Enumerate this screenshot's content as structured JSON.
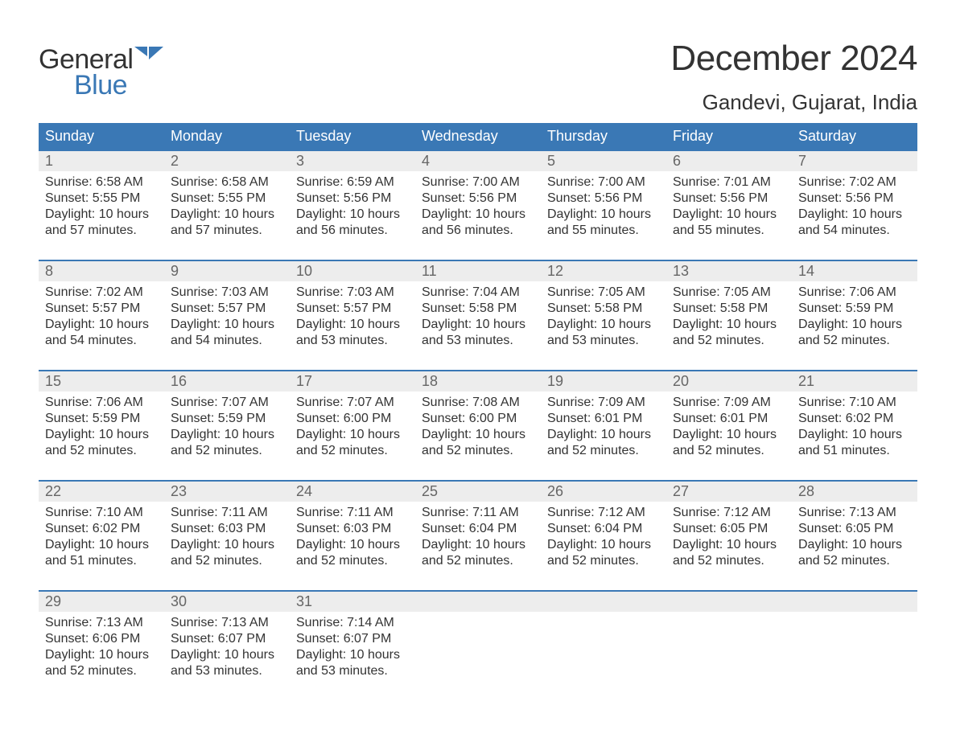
{
  "brand": {
    "line1": "General",
    "line2": "Blue",
    "accent_color": "#3a78b5"
  },
  "title": "December 2024",
  "location": "Gandevi, Gujarat, India",
  "colors": {
    "header_bg": "#3a78b5",
    "header_text": "#ffffff",
    "daynum_bg": "#ededed",
    "daynum_text": "#666666",
    "body_text": "#333333",
    "week_border": "#3a78b5",
    "page_bg": "#ffffff"
  },
  "weekdays": [
    "Sunday",
    "Monday",
    "Tuesday",
    "Wednesday",
    "Thursday",
    "Friday",
    "Saturday"
  ],
  "weeks": [
    [
      {
        "n": "1",
        "sr": "Sunrise: 6:58 AM",
        "ss": "Sunset: 5:55 PM",
        "dl": "Daylight: 10 hours and 57 minutes."
      },
      {
        "n": "2",
        "sr": "Sunrise: 6:58 AM",
        "ss": "Sunset: 5:55 PM",
        "dl": "Daylight: 10 hours and 57 minutes."
      },
      {
        "n": "3",
        "sr": "Sunrise: 6:59 AM",
        "ss": "Sunset: 5:56 PM",
        "dl": "Daylight: 10 hours and 56 minutes."
      },
      {
        "n": "4",
        "sr": "Sunrise: 7:00 AM",
        "ss": "Sunset: 5:56 PM",
        "dl": "Daylight: 10 hours and 56 minutes."
      },
      {
        "n": "5",
        "sr": "Sunrise: 7:00 AM",
        "ss": "Sunset: 5:56 PM",
        "dl": "Daylight: 10 hours and 55 minutes."
      },
      {
        "n": "6",
        "sr": "Sunrise: 7:01 AM",
        "ss": "Sunset: 5:56 PM",
        "dl": "Daylight: 10 hours and 55 minutes."
      },
      {
        "n": "7",
        "sr": "Sunrise: 7:02 AM",
        "ss": "Sunset: 5:56 PM",
        "dl": "Daylight: 10 hours and 54 minutes."
      }
    ],
    [
      {
        "n": "8",
        "sr": "Sunrise: 7:02 AM",
        "ss": "Sunset: 5:57 PM",
        "dl": "Daylight: 10 hours and 54 minutes."
      },
      {
        "n": "9",
        "sr": "Sunrise: 7:03 AM",
        "ss": "Sunset: 5:57 PM",
        "dl": "Daylight: 10 hours and 54 minutes."
      },
      {
        "n": "10",
        "sr": "Sunrise: 7:03 AM",
        "ss": "Sunset: 5:57 PM",
        "dl": "Daylight: 10 hours and 53 minutes."
      },
      {
        "n": "11",
        "sr": "Sunrise: 7:04 AM",
        "ss": "Sunset: 5:58 PM",
        "dl": "Daylight: 10 hours and 53 minutes."
      },
      {
        "n": "12",
        "sr": "Sunrise: 7:05 AM",
        "ss": "Sunset: 5:58 PM",
        "dl": "Daylight: 10 hours and 53 minutes."
      },
      {
        "n": "13",
        "sr": "Sunrise: 7:05 AM",
        "ss": "Sunset: 5:58 PM",
        "dl": "Daylight: 10 hours and 52 minutes."
      },
      {
        "n": "14",
        "sr": "Sunrise: 7:06 AM",
        "ss": "Sunset: 5:59 PM",
        "dl": "Daylight: 10 hours and 52 minutes."
      }
    ],
    [
      {
        "n": "15",
        "sr": "Sunrise: 7:06 AM",
        "ss": "Sunset: 5:59 PM",
        "dl": "Daylight: 10 hours and 52 minutes."
      },
      {
        "n": "16",
        "sr": "Sunrise: 7:07 AM",
        "ss": "Sunset: 5:59 PM",
        "dl": "Daylight: 10 hours and 52 minutes."
      },
      {
        "n": "17",
        "sr": "Sunrise: 7:07 AM",
        "ss": "Sunset: 6:00 PM",
        "dl": "Daylight: 10 hours and 52 minutes."
      },
      {
        "n": "18",
        "sr": "Sunrise: 7:08 AM",
        "ss": "Sunset: 6:00 PM",
        "dl": "Daylight: 10 hours and 52 minutes."
      },
      {
        "n": "19",
        "sr": "Sunrise: 7:09 AM",
        "ss": "Sunset: 6:01 PM",
        "dl": "Daylight: 10 hours and 52 minutes."
      },
      {
        "n": "20",
        "sr": "Sunrise: 7:09 AM",
        "ss": "Sunset: 6:01 PM",
        "dl": "Daylight: 10 hours and 52 minutes."
      },
      {
        "n": "21",
        "sr": "Sunrise: 7:10 AM",
        "ss": "Sunset: 6:02 PM",
        "dl": "Daylight: 10 hours and 51 minutes."
      }
    ],
    [
      {
        "n": "22",
        "sr": "Sunrise: 7:10 AM",
        "ss": "Sunset: 6:02 PM",
        "dl": "Daylight: 10 hours and 51 minutes."
      },
      {
        "n": "23",
        "sr": "Sunrise: 7:11 AM",
        "ss": "Sunset: 6:03 PM",
        "dl": "Daylight: 10 hours and 52 minutes."
      },
      {
        "n": "24",
        "sr": "Sunrise: 7:11 AM",
        "ss": "Sunset: 6:03 PM",
        "dl": "Daylight: 10 hours and 52 minutes."
      },
      {
        "n": "25",
        "sr": "Sunrise: 7:11 AM",
        "ss": "Sunset: 6:04 PM",
        "dl": "Daylight: 10 hours and 52 minutes."
      },
      {
        "n": "26",
        "sr": "Sunrise: 7:12 AM",
        "ss": "Sunset: 6:04 PM",
        "dl": "Daylight: 10 hours and 52 minutes."
      },
      {
        "n": "27",
        "sr": "Sunrise: 7:12 AM",
        "ss": "Sunset: 6:05 PM",
        "dl": "Daylight: 10 hours and 52 minutes."
      },
      {
        "n": "28",
        "sr": "Sunrise: 7:13 AM",
        "ss": "Sunset: 6:05 PM",
        "dl": "Daylight: 10 hours and 52 minutes."
      }
    ],
    [
      {
        "n": "29",
        "sr": "Sunrise: 7:13 AM",
        "ss": "Sunset: 6:06 PM",
        "dl": "Daylight: 10 hours and 52 minutes."
      },
      {
        "n": "30",
        "sr": "Sunrise: 7:13 AM",
        "ss": "Sunset: 6:07 PM",
        "dl": "Daylight: 10 hours and 53 minutes."
      },
      {
        "n": "31",
        "sr": "Sunrise: 7:14 AM",
        "ss": "Sunset: 6:07 PM",
        "dl": "Daylight: 10 hours and 53 minutes."
      },
      null,
      null,
      null,
      null
    ]
  ]
}
